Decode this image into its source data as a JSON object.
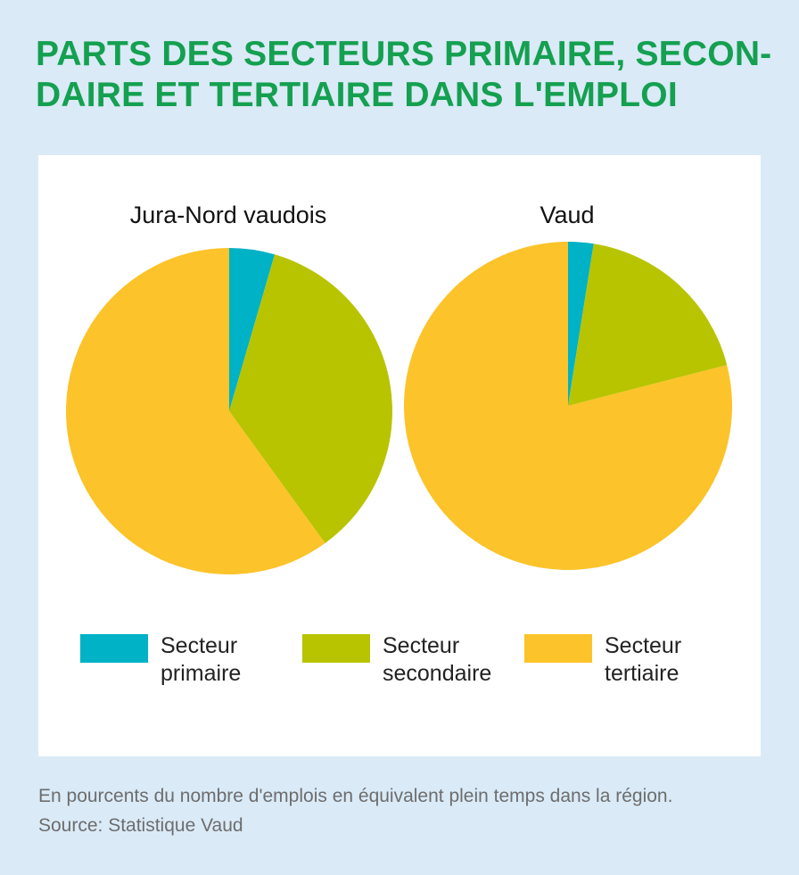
{
  "title": {
    "line1": "PARTS DES SECTEURS PRIMAIRE, SECON-",
    "line2": "DAIRE ET TERTIAIRE DANS L'EMPLOI"
  },
  "legend": [
    {
      "label_line1": "Secteur",
      "label_line2": "primaire",
      "color": "#00b2c6"
    },
    {
      "label_line1": "Secteur",
      "label_line2": "secondaire",
      "color": "#b8c400"
    },
    {
      "label_line1": "Secteur",
      "label_line2": "tertiaire",
      "color": "#fcc32a"
    }
  ],
  "chart_data": [
    {
      "type": "pie",
      "title": "Jura-Nord vaudois",
      "categories": [
        "Secteur primaire",
        "Secteur secondaire",
        "Secteur tertiaire"
      ],
      "values": [
        4.5,
        35.5,
        60.0
      ],
      "colors": [
        "#00b2c6",
        "#b8c400",
        "#fcc32a"
      ]
    },
    {
      "type": "pie",
      "title": "Vaud",
      "categories": [
        "Secteur primaire",
        "Secteur secondaire",
        "Secteur tertiaire"
      ],
      "values": [
        2.5,
        18.5,
        79.0
      ],
      "colors": [
        "#00b2c6",
        "#b8c400",
        "#fcc32a"
      ]
    }
  ],
  "footer": {
    "note": "En pourcents du nombre d'emplois en équivalent plein temps dans la région.",
    "source": "Source: Statistique Vaud"
  }
}
